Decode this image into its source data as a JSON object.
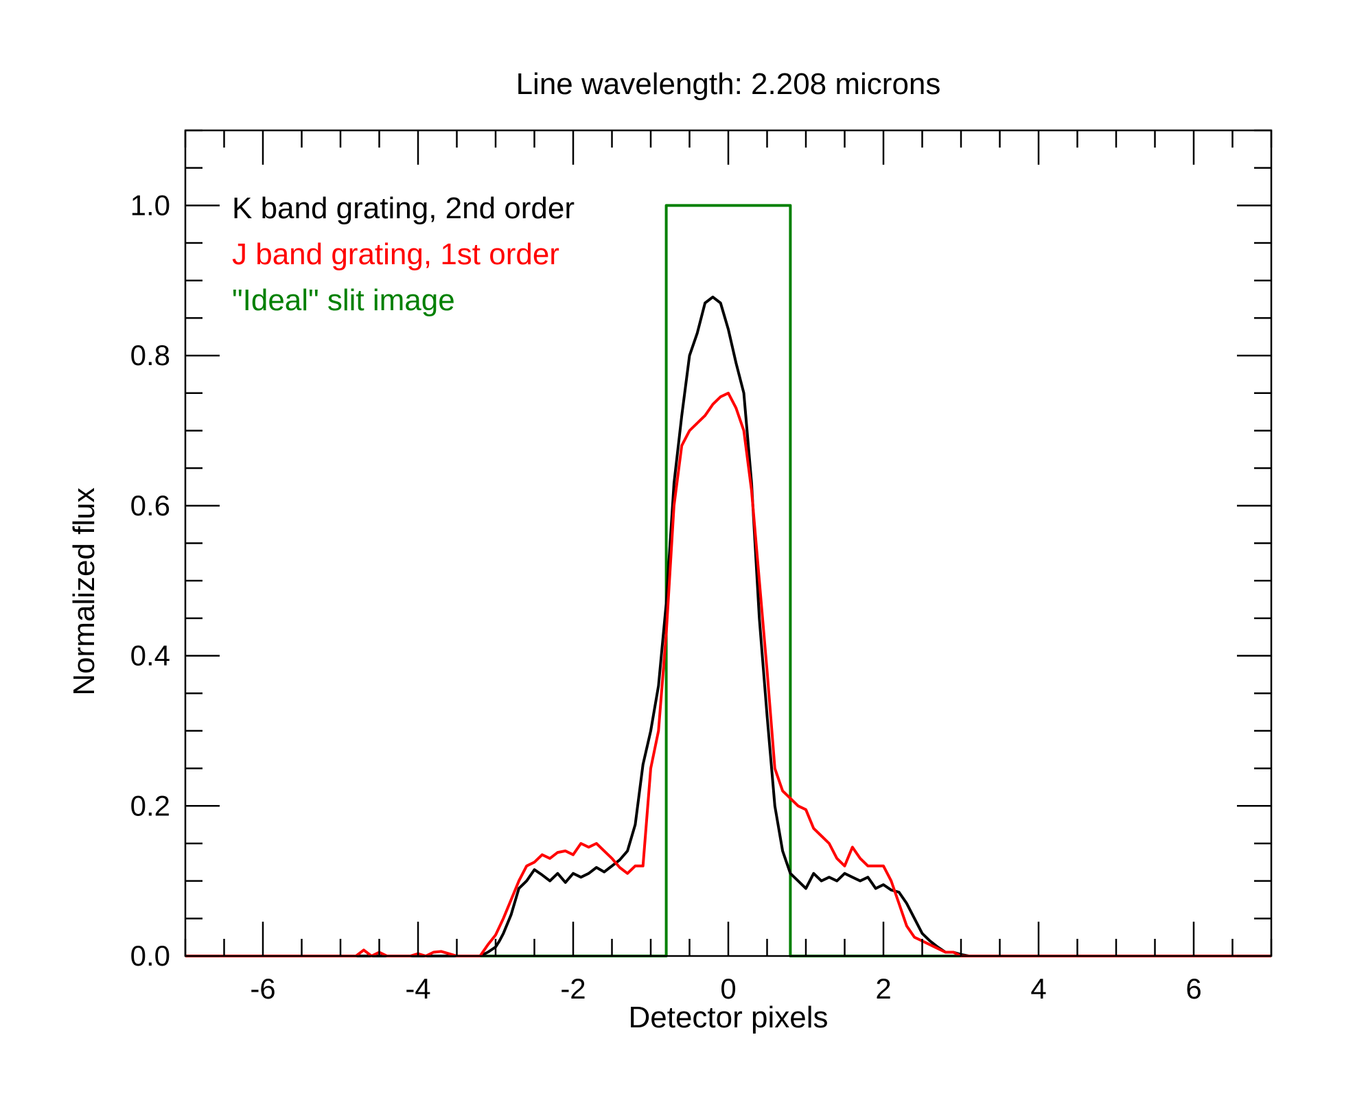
{
  "chart_data": {
    "type": "line",
    "title": "Line wavelength: 2.208 microns",
    "xlabel": "Detector pixels",
    "ylabel": "Normalized flux",
    "xlim": [
      -7,
      7
    ],
    "ylim": [
      0,
      1.1
    ],
    "xticks": [
      -6,
      -4,
      -2,
      0,
      2,
      4,
      6
    ],
    "xtick_labels": [
      "-6",
      "-4",
      "-2",
      "0",
      "2",
      "4",
      "6"
    ],
    "yticks": [
      0,
      0.2,
      0.4,
      0.6,
      0.8,
      1.0
    ],
    "ytick_labels": [
      "0.0",
      "0.2",
      "0.4",
      "0.6",
      "0.8",
      "1.0"
    ],
    "grid": false,
    "legend_position": "top-left",
    "series": [
      {
        "name": "K band grating, 2nd order",
        "color": "#000000",
        "x": [
          -7.0,
          -4.0,
          -3.2,
          -3.1,
          -3.0,
          -2.95,
          -2.9,
          -2.8,
          -2.7,
          -2.6,
          -2.5,
          -2.4,
          -2.3,
          -2.2,
          -2.1,
          -2.0,
          -1.9,
          -1.8,
          -1.7,
          -1.6,
          -1.5,
          -1.4,
          -1.3,
          -1.2,
          -1.1,
          -1.0,
          -0.9,
          -0.8,
          -0.7,
          -0.6,
          -0.5,
          -0.4,
          -0.3,
          -0.2,
          -0.1,
          0.0,
          0.1,
          0.2,
          0.3,
          0.4,
          0.5,
          0.6,
          0.7,
          0.8,
          0.9,
          1.0,
          1.05,
          1.1,
          1.2,
          1.3,
          1.4,
          1.5,
          1.6,
          1.7,
          1.8,
          1.9,
          2.0,
          2.1,
          2.2,
          2.3,
          2.4,
          2.5,
          2.6,
          2.7,
          2.8,
          2.9,
          3.0,
          3.1,
          3.2,
          3.3,
          3.4,
          3.5,
          3.6,
          7.0
        ],
        "y": [
          0.0,
          0.0,
          0.0,
          0.005,
          0.012,
          0.02,
          0.03,
          0.055,
          0.09,
          0.1,
          0.115,
          0.108,
          0.1,
          0.11,
          0.098,
          0.11,
          0.105,
          0.11,
          0.118,
          0.112,
          0.12,
          0.128,
          0.14,
          0.175,
          0.255,
          0.3,
          0.36,
          0.47,
          0.63,
          0.72,
          0.8,
          0.83,
          0.87,
          0.878,
          0.87,
          0.835,
          0.79,
          0.75,
          0.63,
          0.45,
          0.32,
          0.2,
          0.14,
          0.11,
          0.1,
          0.09,
          0.1,
          0.11,
          0.1,
          0.105,
          0.1,
          0.11,
          0.105,
          0.1,
          0.105,
          0.09,
          0.095,
          0.088,
          0.085,
          0.07,
          0.05,
          0.03,
          0.02,
          0.012,
          0.005,
          0.005,
          0.002,
          0.0,
          0.0,
          0.0,
          0.0,
          0.0,
          0.0,
          0.0
        ]
      },
      {
        "name": "J band grating, 1st order",
        "color": "#ff0000",
        "x": [
          -7.0,
          -4.8,
          -4.7,
          -4.6,
          -4.5,
          -4.4,
          -4.3,
          -4.2,
          -4.1,
          -4.0,
          -3.9,
          -3.8,
          -3.7,
          -3.6,
          -3.5,
          -3.4,
          -3.3,
          -3.2,
          -3.1,
          -3.0,
          -2.9,
          -2.8,
          -2.7,
          -2.6,
          -2.5,
          -2.4,
          -2.3,
          -2.2,
          -2.1,
          -2.0,
          -1.9,
          -1.8,
          -1.7,
          -1.6,
          -1.5,
          -1.4,
          -1.3,
          -1.2,
          -1.1,
          -1.0,
          -0.9,
          -0.8,
          -0.7,
          -0.6,
          -0.5,
          -0.4,
          -0.3,
          -0.2,
          -0.1,
          0.0,
          0.1,
          0.2,
          0.3,
          0.4,
          0.5,
          0.6,
          0.7,
          0.8,
          0.9,
          1.0,
          1.1,
          1.2,
          1.3,
          1.4,
          1.5,
          1.6,
          1.7,
          1.8,
          1.9,
          2.0,
          2.1,
          2.2,
          2.3,
          2.4,
          2.5,
          2.6,
          2.7,
          2.8,
          2.9,
          3.0,
          3.1,
          3.2,
          3.3,
          3.4,
          3.5,
          3.6,
          3.7,
          7.0
        ],
        "y": [
          0.0,
          0.0,
          0.008,
          0.0,
          0.005,
          0.0,
          0.0,
          0.0,
          0.0,
          0.003,
          0.0,
          0.005,
          0.006,
          0.003,
          0.0,
          0.0,
          0.0,
          0.0,
          0.015,
          0.028,
          0.05,
          0.075,
          0.1,
          0.12,
          0.125,
          0.135,
          0.13,
          0.138,
          0.14,
          0.135,
          0.15,
          0.145,
          0.15,
          0.14,
          0.13,
          0.118,
          0.11,
          0.12,
          0.12,
          0.25,
          0.3,
          0.43,
          0.6,
          0.68,
          0.7,
          0.71,
          0.72,
          0.735,
          0.745,
          0.75,
          0.73,
          0.7,
          0.62,
          0.5,
          0.38,
          0.25,
          0.22,
          0.21,
          0.2,
          0.195,
          0.17,
          0.16,
          0.15,
          0.13,
          0.12,
          0.145,
          0.13,
          0.12,
          0.12,
          0.12,
          0.1,
          0.07,
          0.04,
          0.025,
          0.02,
          0.015,
          0.01,
          0.005,
          0.005,
          0.0,
          0.0,
          0.0,
          0.0,
          0.0,
          0.0,
          0.0,
          0.0,
          0.0
        ]
      },
      {
        "name": "\"Ideal\" slit image",
        "color": "#008000",
        "x": [
          -7.0,
          -0.8,
          -0.8,
          0.8,
          0.8,
          7.0
        ],
        "y": [
          0.0,
          0.0,
          1.0,
          1.0,
          0.0,
          0.0
        ]
      }
    ]
  }
}
